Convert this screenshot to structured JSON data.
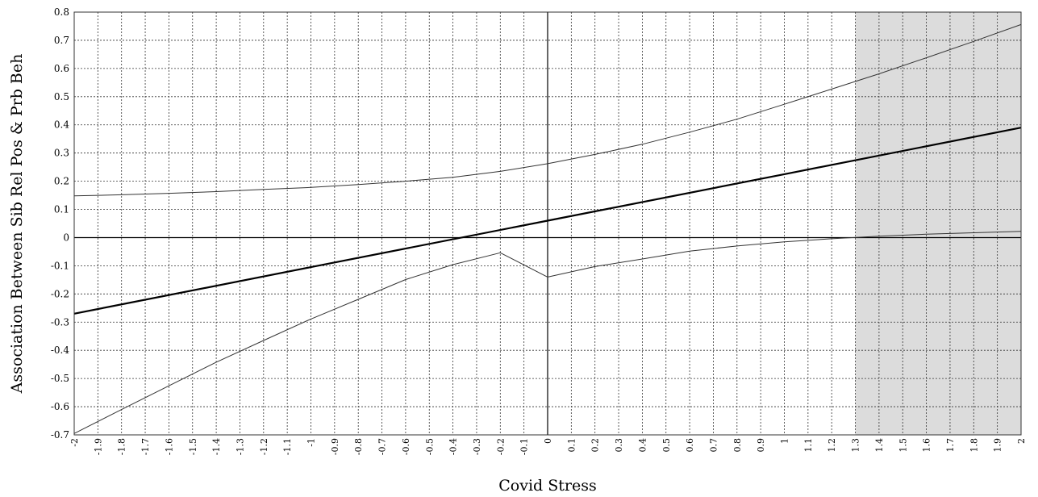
{
  "chart_data": {
    "type": "line",
    "title": "",
    "xlabel": "Covid Stress",
    "ylabel": "Association Between Sib Rel Pos & Prb Beh",
    "xlim": [
      -2,
      2
    ],
    "ylim": [
      -0.7,
      0.8
    ],
    "x_ticks": [
      "-2",
      "-1.9",
      "-1.8",
      "-1.7",
      "-1.6",
      "-1.5",
      "-1.4",
      "-1.3",
      "-1.2",
      "-1.1",
      "-1",
      "-0.9",
      "-0.8",
      "-0.7",
      "-0.6",
      "-0.5",
      "-0.4",
      "-0.3",
      "-0.2",
      "-0.1",
      "0",
      "0.1",
      "0.2",
      "0.3",
      "0.4",
      "0.5",
      "0.6",
      "0.7",
      "0.8",
      "0.9",
      "1",
      "1.1",
      "1.2",
      "1.3",
      "1.4",
      "1.5",
      "1.6",
      "1.7",
      "1.8",
      "1.9",
      "2"
    ],
    "y_ticks": [
      "0.8",
      "0.7",
      "0.6",
      "0.5",
      "0.4",
      "0.3",
      "0.2",
      "0.1",
      "0",
      "-0.1",
      "-0.2",
      "-0.3",
      "-0.4",
      "-0.5",
      "-0.6",
      "-0.7"
    ],
    "grid": true,
    "shaded_region": {
      "x_from": 1.3,
      "x_to": 2,
      "color": "#dcdcdc"
    },
    "series": [
      {
        "role": "estimate",
        "x": [
          -2,
          -1,
          0,
          1,
          2
        ],
        "values": [
          -0.27,
          -0.105,
          0.06,
          0.225,
          0.39
        ]
      },
      {
        "role": "upper",
        "x": [
          -2,
          -1.8,
          -1.6,
          -1.4,
          -1.2,
          -1.0,
          -0.8,
          -0.6,
          -0.4,
          -0.2,
          0.0,
          0.2,
          0.4,
          0.6,
          0.8,
          1.0,
          1.2,
          1.4,
          1.6,
          1.8,
          2.0
        ],
        "values": [
          0.148,
          0.152,
          0.157,
          0.163,
          0.171,
          0.178,
          0.188,
          0.2,
          0.214,
          0.235,
          0.262,
          0.295,
          0.331,
          0.374,
          0.42,
          0.473,
          0.527,
          0.581,
          0.638,
          0.696,
          0.756
        ]
      },
      {
        "role": "lower",
        "x": [
          -2,
          -1.8,
          -1.6,
          -1.4,
          -1.2,
          -1.0,
          -0.8,
          -0.6,
          -0.4,
          -0.2,
          0.0,
          0.2,
          0.4,
          0.6,
          0.8,
          1.0,
          1.2,
          1.4,
          1.6,
          1.8,
          2.0
        ],
        "values": [
          -0.695,
          -0.61,
          -0.526,
          -0.442,
          -0.365,
          -0.289,
          -0.219,
          -0.149,
          -0.096,
          -0.054,
          -0.14,
          -0.103,
          -0.076,
          -0.048,
          -0.03,
          -0.015,
          -0.004,
          0.005,
          0.012,
          0.017,
          0.022
        ]
      }
    ],
    "colors": {
      "estimate": "#000000",
      "bands": "#333333",
      "grid": "#333333",
      "shade": "#dcdcdc"
    }
  }
}
